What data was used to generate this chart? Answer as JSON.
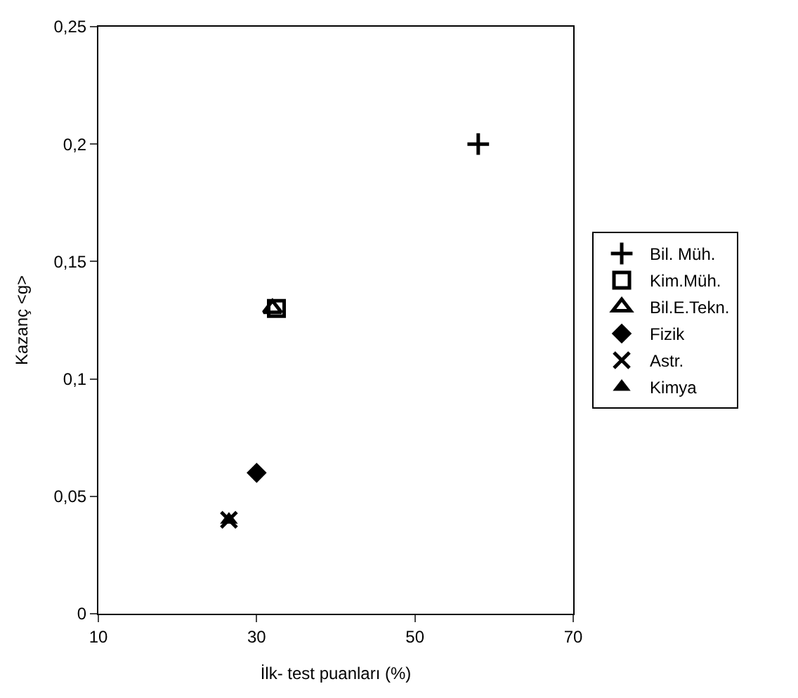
{
  "chart_data": {
    "type": "scatter",
    "xlabel": "İlk- test puanları (%)",
    "ylabel": "Kazanç <g>",
    "xlim": [
      10,
      70
    ],
    "xticks": [
      10,
      30,
      50,
      70
    ],
    "ylim": [
      0,
      0.25
    ],
    "yticks": [
      {
        "value": 0,
        "label": "0"
      },
      {
        "value": 0.05,
        "label": "0,05"
      },
      {
        "value": 0.1,
        "label": "0,1"
      },
      {
        "value": 0.15,
        "label": "0,15"
      },
      {
        "value": 0.2,
        "label": "0,2"
      },
      {
        "value": 0.25,
        "label": "0,25"
      }
    ],
    "legend": "right",
    "series": [
      {
        "name": "Bil. Müh.",
        "color": "#000000",
        "marker": "cross",
        "x": [
          58
        ],
        "values": [
          0.2
        ]
      },
      {
        "name": "Kim.Müh.",
        "color": "#000000",
        "marker": "square-open",
        "x": [
          32.5
        ],
        "values": [
          0.13
        ]
      },
      {
        "name": "Bil.E.Tekn.",
        "color": "#000000",
        "marker": "triangle-open",
        "x": [
          32
        ],
        "values": [
          0.13
        ]
      },
      {
        "name": "Fizik",
        "color": "#000000",
        "marker": "diamond",
        "x": [
          30
        ],
        "values": [
          0.06
        ]
      },
      {
        "name": "Astr.",
        "color": "#000000",
        "marker": "x",
        "x": [
          26.5
        ],
        "values": [
          0.04
        ]
      },
      {
        "name": "Kimya",
        "color": "#000000",
        "marker": "triangle",
        "x": [
          26.5
        ],
        "values": [
          0.04
        ]
      }
    ]
  }
}
